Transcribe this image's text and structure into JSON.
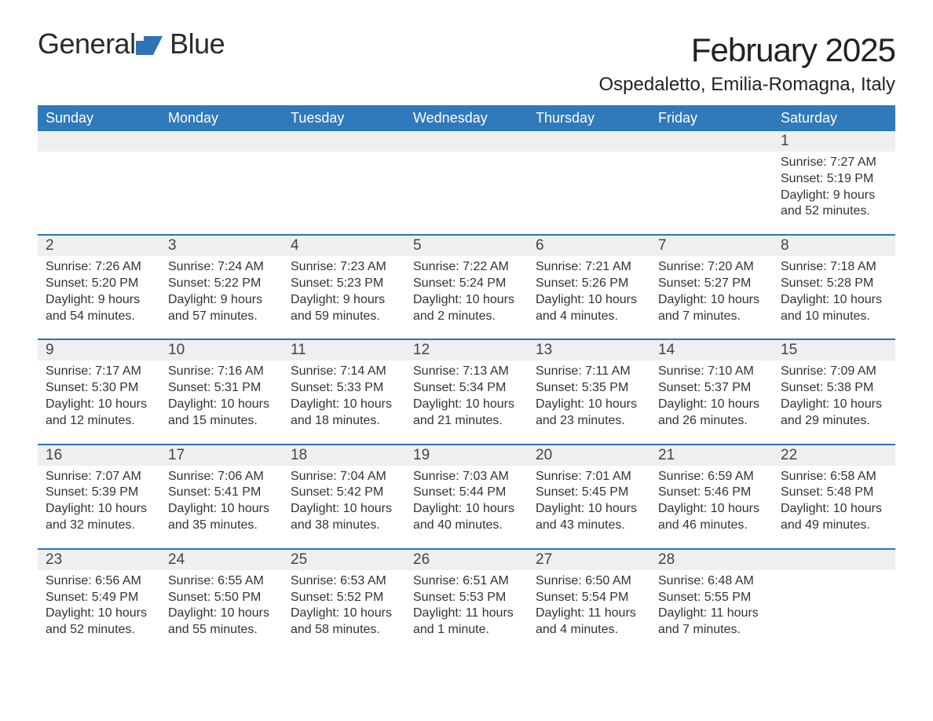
{
  "branding": {
    "logo_word1": "General",
    "logo_word2": "Blue",
    "logo_fill": "#2d73b5"
  },
  "header": {
    "month_title": "February 2025",
    "location": "Ospedaletto, Emilia-Romagna, Italy"
  },
  "style": {
    "header_row_color": "#3079ba",
    "rule_color": "#2d73b5",
    "day_band_color": "#efefef",
    "font_family": "Segoe UI",
    "title_fontsize_pt": 32,
    "location_fontsize_pt": 18,
    "body_fontsize_pt": 12
  },
  "day_labels": [
    "Sunday",
    "Monday",
    "Tuesday",
    "Wednesday",
    "Thursday",
    "Friday",
    "Saturday"
  ],
  "weeks": [
    [
      null,
      null,
      null,
      null,
      null,
      null,
      {
        "n": "1",
        "sunrise": "Sunrise: 7:27 AM",
        "sunset": "Sunset: 5:19 PM",
        "day1": "Daylight: 9 hours",
        "day2": "and 52 minutes."
      }
    ],
    [
      {
        "n": "2",
        "sunrise": "Sunrise: 7:26 AM",
        "sunset": "Sunset: 5:20 PM",
        "day1": "Daylight: 9 hours",
        "day2": "and 54 minutes."
      },
      {
        "n": "3",
        "sunrise": "Sunrise: 7:24 AM",
        "sunset": "Sunset: 5:22 PM",
        "day1": "Daylight: 9 hours",
        "day2": "and 57 minutes."
      },
      {
        "n": "4",
        "sunrise": "Sunrise: 7:23 AM",
        "sunset": "Sunset: 5:23 PM",
        "day1": "Daylight: 9 hours",
        "day2": "and 59 minutes."
      },
      {
        "n": "5",
        "sunrise": "Sunrise: 7:22 AM",
        "sunset": "Sunset: 5:24 PM",
        "day1": "Daylight: 10 hours",
        "day2": "and 2 minutes."
      },
      {
        "n": "6",
        "sunrise": "Sunrise: 7:21 AM",
        "sunset": "Sunset: 5:26 PM",
        "day1": "Daylight: 10 hours",
        "day2": "and 4 minutes."
      },
      {
        "n": "7",
        "sunrise": "Sunrise: 7:20 AM",
        "sunset": "Sunset: 5:27 PM",
        "day1": "Daylight: 10 hours",
        "day2": "and 7 minutes."
      },
      {
        "n": "8",
        "sunrise": "Sunrise: 7:18 AM",
        "sunset": "Sunset: 5:28 PM",
        "day1": "Daylight: 10 hours",
        "day2": "and 10 minutes."
      }
    ],
    [
      {
        "n": "9",
        "sunrise": "Sunrise: 7:17 AM",
        "sunset": "Sunset: 5:30 PM",
        "day1": "Daylight: 10 hours",
        "day2": "and 12 minutes."
      },
      {
        "n": "10",
        "sunrise": "Sunrise: 7:16 AM",
        "sunset": "Sunset: 5:31 PM",
        "day1": "Daylight: 10 hours",
        "day2": "and 15 minutes."
      },
      {
        "n": "11",
        "sunrise": "Sunrise: 7:14 AM",
        "sunset": "Sunset: 5:33 PM",
        "day1": "Daylight: 10 hours",
        "day2": "and 18 minutes."
      },
      {
        "n": "12",
        "sunrise": "Sunrise: 7:13 AM",
        "sunset": "Sunset: 5:34 PM",
        "day1": "Daylight: 10 hours",
        "day2": "and 21 minutes."
      },
      {
        "n": "13",
        "sunrise": "Sunrise: 7:11 AM",
        "sunset": "Sunset: 5:35 PM",
        "day1": "Daylight: 10 hours",
        "day2": "and 23 minutes."
      },
      {
        "n": "14",
        "sunrise": "Sunrise: 7:10 AM",
        "sunset": "Sunset: 5:37 PM",
        "day1": "Daylight: 10 hours",
        "day2": "and 26 minutes."
      },
      {
        "n": "15",
        "sunrise": "Sunrise: 7:09 AM",
        "sunset": "Sunset: 5:38 PM",
        "day1": "Daylight: 10 hours",
        "day2": "and 29 minutes."
      }
    ],
    [
      {
        "n": "16",
        "sunrise": "Sunrise: 7:07 AM",
        "sunset": "Sunset: 5:39 PM",
        "day1": "Daylight: 10 hours",
        "day2": "and 32 minutes."
      },
      {
        "n": "17",
        "sunrise": "Sunrise: 7:06 AM",
        "sunset": "Sunset: 5:41 PM",
        "day1": "Daylight: 10 hours",
        "day2": "and 35 minutes."
      },
      {
        "n": "18",
        "sunrise": "Sunrise: 7:04 AM",
        "sunset": "Sunset: 5:42 PM",
        "day1": "Daylight: 10 hours",
        "day2": "and 38 minutes."
      },
      {
        "n": "19",
        "sunrise": "Sunrise: 7:03 AM",
        "sunset": "Sunset: 5:44 PM",
        "day1": "Daylight: 10 hours",
        "day2": "and 40 minutes."
      },
      {
        "n": "20",
        "sunrise": "Sunrise: 7:01 AM",
        "sunset": "Sunset: 5:45 PM",
        "day1": "Daylight: 10 hours",
        "day2": "and 43 minutes."
      },
      {
        "n": "21",
        "sunrise": "Sunrise: 6:59 AM",
        "sunset": "Sunset: 5:46 PM",
        "day1": "Daylight: 10 hours",
        "day2": "and 46 minutes."
      },
      {
        "n": "22",
        "sunrise": "Sunrise: 6:58 AM",
        "sunset": "Sunset: 5:48 PM",
        "day1": "Daylight: 10 hours",
        "day2": "and 49 minutes."
      }
    ],
    [
      {
        "n": "23",
        "sunrise": "Sunrise: 6:56 AM",
        "sunset": "Sunset: 5:49 PM",
        "day1": "Daylight: 10 hours",
        "day2": "and 52 minutes."
      },
      {
        "n": "24",
        "sunrise": "Sunrise: 6:55 AM",
        "sunset": "Sunset: 5:50 PM",
        "day1": "Daylight: 10 hours",
        "day2": "and 55 minutes."
      },
      {
        "n": "25",
        "sunrise": "Sunrise: 6:53 AM",
        "sunset": "Sunset: 5:52 PM",
        "day1": "Daylight: 10 hours",
        "day2": "and 58 minutes."
      },
      {
        "n": "26",
        "sunrise": "Sunrise: 6:51 AM",
        "sunset": "Sunset: 5:53 PM",
        "day1": "Daylight: 11 hours",
        "day2": "and 1 minute."
      },
      {
        "n": "27",
        "sunrise": "Sunrise: 6:50 AM",
        "sunset": "Sunset: 5:54 PM",
        "day1": "Daylight: 11 hours",
        "day2": "and 4 minutes."
      },
      {
        "n": "28",
        "sunrise": "Sunrise: 6:48 AM",
        "sunset": "Sunset: 5:55 PM",
        "day1": "Daylight: 11 hours",
        "day2": "and 7 minutes."
      },
      null
    ]
  ]
}
